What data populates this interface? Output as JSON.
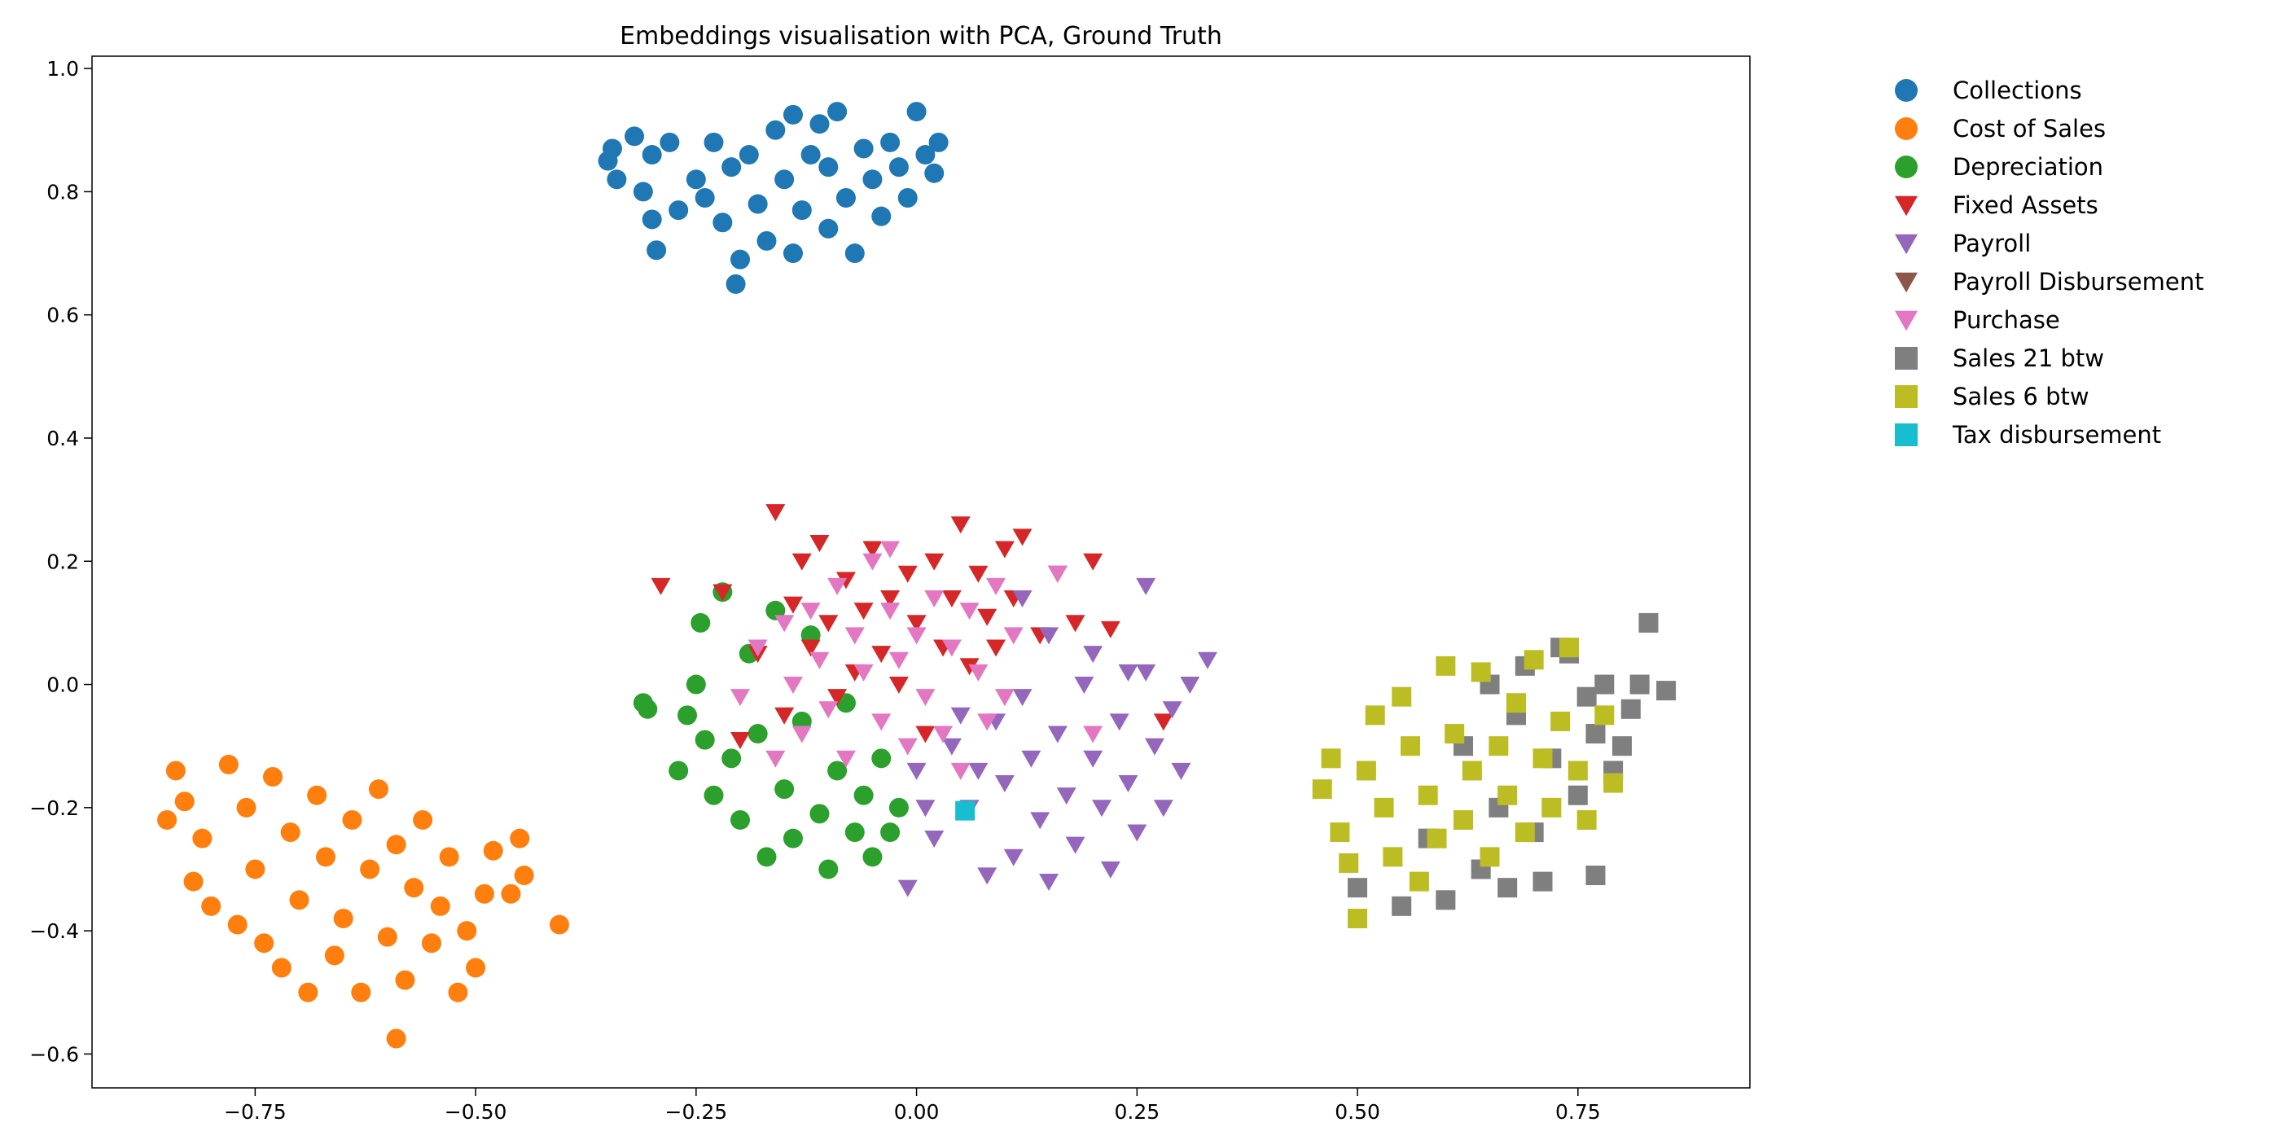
{
  "chart_data": {
    "type": "scatter",
    "title": "Embeddings visualisation with PCA, Ground Truth",
    "xlabel": "",
    "ylabel": "",
    "xlim": [
      -0.935,
      0.945
    ],
    "ylim": [
      -0.655,
      1.02
    ],
    "x_ticks": [
      -0.75,
      -0.5,
      -0.25,
      0.0,
      0.25,
      0.5,
      0.75
    ],
    "x_tick_labels": [
      "−0.75",
      "−0.50",
      "−0.25",
      "0.00",
      "0.25",
      "0.50",
      "0.75"
    ],
    "y_ticks": [
      -0.6,
      -0.4,
      -0.2,
      0.0,
      0.2,
      0.4,
      0.6,
      0.8,
      1.0
    ],
    "y_tick_labels": [
      "−0.6",
      "−0.4",
      "−0.2",
      "0.0",
      "0.2",
      "0.4",
      "0.6",
      "0.8",
      "1.0"
    ],
    "grid": false,
    "legend_position": "outside-right",
    "series": [
      {
        "name": "Collections",
        "marker": "circle",
        "color": "#1f77b4",
        "points": [
          [
            -0.35,
            0.85
          ],
          [
            -0.345,
            0.87
          ],
          [
            -0.34,
            0.82
          ],
          [
            -0.32,
            0.89
          ],
          [
            -0.31,
            0.8
          ],
          [
            -0.3,
            0.86
          ],
          [
            -0.3,
            0.755
          ],
          [
            -0.295,
            0.705
          ],
          [
            -0.28,
            0.88
          ],
          [
            -0.27,
            0.77
          ],
          [
            -0.25,
            0.82
          ],
          [
            -0.24,
            0.79
          ],
          [
            -0.23,
            0.88
          ],
          [
            -0.22,
            0.75
          ],
          [
            -0.21,
            0.84
          ],
          [
            -0.205,
            0.65
          ],
          [
            -0.2,
            0.69
          ],
          [
            -0.19,
            0.86
          ],
          [
            -0.18,
            0.78
          ],
          [
            -0.17,
            0.72
          ],
          [
            -0.16,
            0.9
          ],
          [
            -0.15,
            0.82
          ],
          [
            -0.14,
            0.7
          ],
          [
            -0.14,
            0.925
          ],
          [
            -0.13,
            0.77
          ],
          [
            -0.12,
            0.86
          ],
          [
            -0.11,
            0.91
          ],
          [
            -0.1,
            0.74
          ],
          [
            -0.1,
            0.84
          ],
          [
            -0.09,
            0.93
          ],
          [
            -0.08,
            0.79
          ],
          [
            -0.07,
            0.7
          ],
          [
            -0.06,
            0.87
          ],
          [
            -0.05,
            0.82
          ],
          [
            -0.04,
            0.76
          ],
          [
            -0.03,
            0.88
          ],
          [
            -0.02,
            0.84
          ],
          [
            -0.01,
            0.79
          ],
          [
            0.0,
            0.93
          ],
          [
            0.01,
            0.86
          ],
          [
            0.02,
            0.83
          ],
          [
            0.025,
            0.88
          ]
        ]
      },
      {
        "name": "Cost of Sales",
        "marker": "circle",
        "color": "#ff7f0e",
        "points": [
          [
            -0.85,
            -0.22
          ],
          [
            -0.84,
            -0.14
          ],
          [
            -0.83,
            -0.19
          ],
          [
            -0.82,
            -0.32
          ],
          [
            -0.81,
            -0.25
          ],
          [
            -0.8,
            -0.36
          ],
          [
            -0.78,
            -0.13
          ],
          [
            -0.77,
            -0.39
          ],
          [
            -0.76,
            -0.2
          ],
          [
            -0.75,
            -0.3
          ],
          [
            -0.74,
            -0.42
          ],
          [
            -0.73,
            -0.15
          ],
          [
            -0.72,
            -0.46
          ],
          [
            -0.71,
            -0.24
          ],
          [
            -0.7,
            -0.35
          ],
          [
            -0.69,
            -0.5
          ],
          [
            -0.68,
            -0.18
          ],
          [
            -0.67,
            -0.28
          ],
          [
            -0.66,
            -0.44
          ],
          [
            -0.65,
            -0.38
          ],
          [
            -0.64,
            -0.22
          ],
          [
            -0.63,
            -0.5
          ],
          [
            -0.62,
            -0.3
          ],
          [
            -0.61,
            -0.17
          ],
          [
            -0.6,
            -0.41
          ],
          [
            -0.59,
            -0.26
          ],
          [
            -0.58,
            -0.48
          ],
          [
            -0.57,
            -0.33
          ],
          [
            -0.56,
            -0.22
          ],
          [
            -0.55,
            -0.42
          ],
          [
            -0.54,
            -0.36
          ],
          [
            -0.53,
            -0.28
          ],
          [
            -0.52,
            -0.5
          ],
          [
            -0.51,
            -0.4
          ],
          [
            -0.5,
            -0.46
          ],
          [
            -0.49,
            -0.34
          ],
          [
            -0.48,
            -0.27
          ],
          [
            -0.46,
            -0.34
          ],
          [
            -0.45,
            -0.25
          ],
          [
            -0.445,
            -0.31
          ],
          [
            -0.405,
            -0.39
          ],
          [
            -0.59,
            -0.575
          ]
        ]
      },
      {
        "name": "Depreciation",
        "marker": "circle",
        "color": "#2ca02c",
        "points": [
          [
            -0.31,
            -0.03
          ],
          [
            -0.305,
            -0.04
          ],
          [
            -0.27,
            -0.14
          ],
          [
            -0.26,
            -0.05
          ],
          [
            -0.25,
            0.0
          ],
          [
            -0.245,
            0.1
          ],
          [
            -0.24,
            -0.09
          ],
          [
            -0.23,
            -0.18
          ],
          [
            -0.22,
            0.15
          ],
          [
            -0.21,
            -0.12
          ],
          [
            -0.2,
            -0.22
          ],
          [
            -0.19,
            0.05
          ],
          [
            -0.18,
            -0.08
          ],
          [
            -0.17,
            -0.28
          ],
          [
            -0.16,
            0.12
          ],
          [
            -0.15,
            -0.17
          ],
          [
            -0.14,
            -0.25
          ],
          [
            -0.13,
            -0.06
          ],
          [
            -0.12,
            0.08
          ],
          [
            -0.11,
            -0.21
          ],
          [
            -0.1,
            -0.3
          ],
          [
            -0.09,
            -0.14
          ],
          [
            -0.08,
            -0.03
          ],
          [
            -0.07,
            -0.24
          ],
          [
            -0.06,
            -0.18
          ],
          [
            -0.05,
            -0.28
          ],
          [
            -0.04,
            -0.12
          ],
          [
            -0.03,
            -0.24
          ],
          [
            -0.02,
            -0.2
          ]
        ]
      },
      {
        "name": "Fixed Assets",
        "marker": "triangle-down",
        "color": "#d62728",
        "points": [
          [
            -0.29,
            0.16
          ],
          [
            -0.22,
            0.15
          ],
          [
            -0.2,
            -0.09
          ],
          [
            -0.18,
            0.05
          ],
          [
            -0.16,
            0.28
          ],
          [
            -0.15,
            -0.05
          ],
          [
            -0.14,
            0.13
          ],
          [
            -0.13,
            0.2
          ],
          [
            -0.12,
            0.06
          ],
          [
            -0.11,
            0.23
          ],
          [
            -0.1,
            0.1
          ],
          [
            -0.09,
            -0.02
          ],
          [
            -0.08,
            0.17
          ],
          [
            -0.07,
            0.02
          ],
          [
            -0.06,
            0.12
          ],
          [
            -0.05,
            0.22
          ],
          [
            -0.04,
            0.05
          ],
          [
            -0.03,
            0.14
          ],
          [
            -0.02,
            0.0
          ],
          [
            -0.01,
            0.18
          ],
          [
            0.0,
            0.1
          ],
          [
            0.01,
            -0.08
          ],
          [
            0.02,
            0.2
          ],
          [
            0.03,
            0.06
          ],
          [
            0.04,
            0.14
          ],
          [
            0.05,
            0.26
          ],
          [
            0.06,
            0.03
          ],
          [
            0.07,
            0.18
          ],
          [
            0.08,
            0.11
          ],
          [
            0.09,
            0.06
          ],
          [
            0.1,
            0.22
          ],
          [
            0.11,
            0.14
          ],
          [
            0.12,
            0.24
          ],
          [
            0.14,
            0.08
          ],
          [
            0.16,
            0.18
          ],
          [
            0.18,
            0.1
          ],
          [
            0.2,
            0.2
          ],
          [
            0.22,
            0.09
          ],
          [
            0.28,
            -0.06
          ]
        ]
      },
      {
        "name": "Payroll",
        "marker": "triangle-down",
        "color": "#9467bd",
        "points": [
          [
            0.0,
            -0.14
          ],
          [
            0.02,
            -0.25
          ],
          [
            0.04,
            -0.1
          ],
          [
            0.06,
            -0.2
          ],
          [
            0.08,
            -0.31
          ],
          [
            0.09,
            -0.06
          ],
          [
            0.1,
            -0.16
          ],
          [
            0.11,
            -0.28
          ],
          [
            0.12,
            -0.02
          ],
          [
            0.13,
            -0.12
          ],
          [
            0.14,
            -0.22
          ],
          [
            0.15,
            -0.32
          ],
          [
            0.16,
            -0.08
          ],
          [
            0.17,
            -0.18
          ],
          [
            0.18,
            -0.26
          ],
          [
            0.19,
            0.0
          ],
          [
            0.2,
            -0.12
          ],
          [
            0.21,
            -0.2
          ],
          [
            0.22,
            -0.3
          ],
          [
            0.23,
            -0.06
          ],
          [
            0.24,
            -0.16
          ],
          [
            0.25,
            -0.24
          ],
          [
            0.26,
            0.02
          ],
          [
            0.27,
            -0.1
          ],
          [
            0.28,
            -0.2
          ],
          [
            0.29,
            -0.04
          ],
          [
            0.3,
            -0.14
          ],
          [
            0.31,
            0.0
          ],
          [
            0.33,
            0.04
          ],
          [
            0.12,
            0.14
          ],
          [
            0.26,
            0.16
          ],
          [
            -0.01,
            -0.33
          ],
          [
            0.01,
            -0.2
          ],
          [
            0.05,
            -0.05
          ],
          [
            0.07,
            -0.14
          ],
          [
            0.15,
            0.08
          ],
          [
            0.2,
            0.05
          ],
          [
            0.24,
            0.02
          ]
        ]
      },
      {
        "name": "Payroll Disbursement",
        "marker": "triangle-down",
        "color": "#8c564b",
        "points": []
      },
      {
        "name": "Purchase",
        "marker": "triangle-down",
        "color": "#e377c2",
        "points": [
          [
            -0.2,
            -0.02
          ],
          [
            -0.18,
            0.06
          ],
          [
            -0.16,
            -0.12
          ],
          [
            -0.15,
            0.1
          ],
          [
            -0.14,
            0.0
          ],
          [
            -0.13,
            -0.08
          ],
          [
            -0.12,
            0.12
          ],
          [
            -0.11,
            0.04
          ],
          [
            -0.1,
            -0.04
          ],
          [
            -0.09,
            0.16
          ],
          [
            -0.08,
            -0.12
          ],
          [
            -0.07,
            0.08
          ],
          [
            -0.06,
            0.02
          ],
          [
            -0.05,
            0.2
          ],
          [
            -0.04,
            -0.06
          ],
          [
            -0.03,
            0.12
          ],
          [
            -0.02,
            0.04
          ],
          [
            -0.01,
            -0.1
          ],
          [
            0.0,
            0.08
          ],
          [
            0.01,
            -0.02
          ],
          [
            0.02,
            0.14
          ],
          [
            0.03,
            -0.08
          ],
          [
            0.04,
            0.06
          ],
          [
            0.05,
            -0.14
          ],
          [
            0.06,
            0.12
          ],
          [
            0.07,
            0.02
          ],
          [
            0.08,
            -0.06
          ],
          [
            0.09,
            0.16
          ],
          [
            0.1,
            -0.02
          ],
          [
            0.11,
            0.08
          ],
          [
            0.16,
            0.18
          ],
          [
            0.2,
            -0.08
          ],
          [
            -0.03,
            0.22
          ]
        ]
      },
      {
        "name": "Sales 21 btw",
        "marker": "square",
        "color": "#7f7f7f",
        "points": [
          [
            0.5,
            -0.33
          ],
          [
            0.55,
            -0.36
          ],
          [
            0.58,
            -0.25
          ],
          [
            0.6,
            -0.35
          ],
          [
            0.62,
            -0.1
          ],
          [
            0.64,
            -0.3
          ],
          [
            0.65,
            0.0
          ],
          [
            0.66,
            -0.2
          ],
          [
            0.67,
            -0.33
          ],
          [
            0.68,
            -0.05
          ],
          [
            0.7,
            -0.24
          ],
          [
            0.71,
            -0.32
          ],
          [
            0.72,
            -0.12
          ],
          [
            0.74,
            0.05
          ],
          [
            0.75,
            -0.18
          ],
          [
            0.76,
            -0.02
          ],
          [
            0.77,
            -0.08
          ],
          [
            0.78,
            0.0
          ],
          [
            0.79,
            -0.14
          ],
          [
            0.8,
            -0.1
          ],
          [
            0.81,
            -0.04
          ],
          [
            0.82,
            0.0
          ],
          [
            0.83,
            0.1
          ],
          [
            0.85,
            -0.01
          ],
          [
            0.77,
            -0.31
          ],
          [
            0.73,
            0.06
          ],
          [
            0.69,
            0.03
          ]
        ]
      },
      {
        "name": "Sales 6 btw",
        "marker": "square",
        "color": "#bcbd22",
        "points": [
          [
            0.46,
            -0.17
          ],
          [
            0.47,
            -0.12
          ],
          [
            0.48,
            -0.24
          ],
          [
            0.49,
            -0.29
          ],
          [
            0.5,
            -0.38
          ],
          [
            0.51,
            -0.14
          ],
          [
            0.52,
            -0.05
          ],
          [
            0.53,
            -0.2
          ],
          [
            0.54,
            -0.28
          ],
          [
            0.55,
            -0.02
          ],
          [
            0.56,
            -0.1
          ],
          [
            0.57,
            -0.32
          ],
          [
            0.58,
            -0.18
          ],
          [
            0.59,
            -0.25
          ],
          [
            0.6,
            0.03
          ],
          [
            0.61,
            -0.08
          ],
          [
            0.62,
            -0.22
          ],
          [
            0.63,
            -0.14
          ],
          [
            0.64,
            0.02
          ],
          [
            0.65,
            -0.28
          ],
          [
            0.66,
            -0.1
          ],
          [
            0.67,
            -0.18
          ],
          [
            0.68,
            -0.03
          ],
          [
            0.69,
            -0.24
          ],
          [
            0.7,
            0.04
          ],
          [
            0.71,
            -0.12
          ],
          [
            0.72,
            -0.2
          ],
          [
            0.73,
            -0.06
          ],
          [
            0.74,
            0.06
          ],
          [
            0.75,
            -0.14
          ],
          [
            0.76,
            -0.22
          ],
          [
            0.78,
            -0.05
          ],
          [
            0.79,
            -0.16
          ]
        ]
      },
      {
        "name": "Tax disbursement",
        "marker": "square",
        "color": "#17becf",
        "points": [
          [
            0.055,
            -0.205
          ]
        ]
      }
    ]
  }
}
